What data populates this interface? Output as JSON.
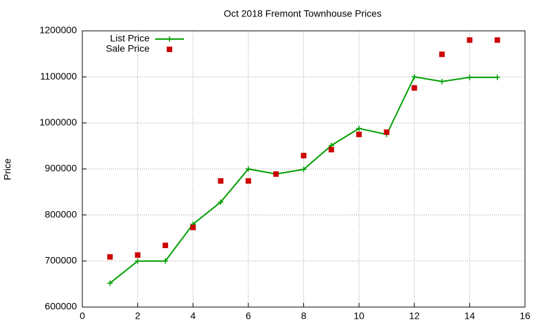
{
  "chart_data": {
    "type": "line",
    "title": "Oct 2018 Fremont Townhouse Prices",
    "y_label": "Price",
    "x": [
      1,
      2,
      3,
      4,
      5,
      6,
      7,
      8,
      9,
      10,
      11,
      12,
      13,
      14,
      15
    ],
    "series": [
      {
        "name": "List Price",
        "color": "#009e00",
        "line": true,
        "marker": "plus",
        "values": [
          652000,
          700000,
          700000,
          780000,
          828000,
          900000,
          889000,
          899000,
          951000,
          988000,
          975000,
          1100000,
          1090000,
          1099000,
          1099000
        ]
      },
      {
        "name": "Sale Price",
        "color": "#cc0000",
        "line": false,
        "marker": "square",
        "values": [
          709000,
          713000,
          734000,
          773000,
          874000,
          874000,
          889000,
          929000,
          942000,
          975000,
          980000,
          1076000,
          1149000,
          1180000,
          1180000
        ]
      }
    ],
    "xlim": [
      0,
      16
    ],
    "xticks": [
      0,
      2,
      4,
      6,
      8,
      10,
      12,
      14,
      16
    ],
    "ylim": [
      600000,
      1200000
    ],
    "yticks": [
      600000,
      700000,
      800000,
      900000,
      1000000,
      1100000,
      1200000
    ],
    "grid": true,
    "legend": "top-left"
  }
}
